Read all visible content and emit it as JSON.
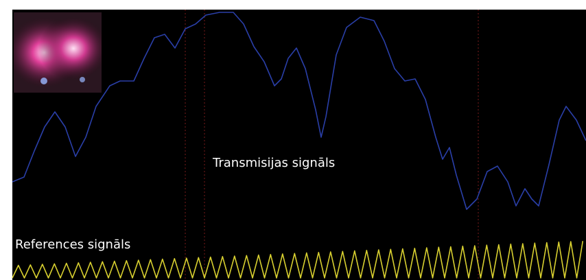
{
  "labels": {
    "transmission": "Transmisijas signāls",
    "reference": "References signāls"
  }
}
